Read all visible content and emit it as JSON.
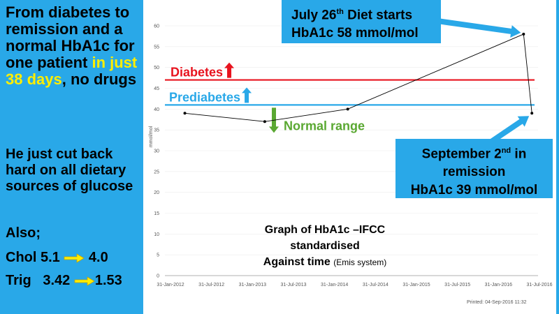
{
  "sidebar": {
    "headline_1": "From diabetes to remission and a normal HbA1c for one patient",
    "headline_hl": "in just 38 days",
    "headline_2": ", no drugs",
    "body": "He just cut back hard on all dietary sources of glucose",
    "also": "Also;",
    "chol_label": "Chol 5.1",
    "chol_to": "4.0",
    "trig_label": "Trig   3.42",
    "trig_to": "1.53",
    "arrow_color": "#ffee00"
  },
  "callouts": {
    "july_line1_pre": "July 26",
    "july_line1_sup": "th",
    "july_line1_post": " Diet starts",
    "july_line2": "HbA1c 58 mmol/mol",
    "sept_line1_pre": "September 2",
    "sept_line1_sup": "nd",
    "sept_line1_post": " in",
    "sept_line2": "remission",
    "sept_line3": "HbA1c 39 mmol/mol"
  },
  "caption": {
    "line1": "Graph of HbA1c –IFCC standardised",
    "line2": "Against time",
    "line2_small": "(Emis system)"
  },
  "printed": "Printed: 04-Sep-2016 11:32",
  "chart_data": {
    "type": "line",
    "ylabel": "mmol/mol",
    "ylim": [
      0,
      60
    ],
    "y_ticks": [
      "0",
      "5",
      "10",
      "15",
      "20",
      "25",
      "30",
      "35",
      "40",
      "45",
      "50",
      "55",
      "60"
    ],
    "x_ticks": [
      "31-Jan-2012",
      "31-Jul-2012",
      "31-Jan-2013",
      "31-Jul-2013",
      "31-Jan-2014",
      "31-Jul-2014",
      "31-Jan-2015",
      "31-Jul-2015",
      "31-Jan-2016",
      "31-Jul-2016"
    ],
    "x_range": [
      "2012-01-31",
      "2016-09-30"
    ],
    "series": [
      {
        "x": [
          "2012-05-01",
          "2013-05-01",
          "2014-05-15",
          "2016-07-26",
          "2016-09-02"
        ],
        "y": [
          39,
          37,
          40,
          58,
          39
        ],
        "color": "#000000"
      }
    ],
    "thresholds": [
      {
        "label": "Diabetes",
        "y": 47,
        "color": "#e8131e",
        "direction": "up"
      },
      {
        "label": "Prediabetes",
        "y": 41,
        "color": "#29a8e8",
        "direction": "up"
      }
    ],
    "annotations": [
      {
        "label": "Normal range",
        "color": "#5aa832",
        "direction": "down"
      }
    ],
    "grid": true
  }
}
